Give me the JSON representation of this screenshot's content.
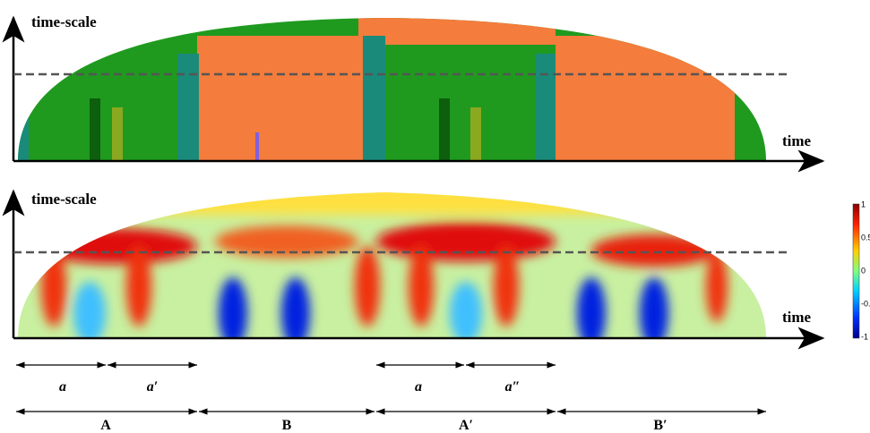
{
  "panels": [
    {
      "y_axis_label": "time-scale",
      "x_axis_label": "time"
    },
    {
      "y_axis_label": "time-scale",
      "x_axis_label": "time"
    }
  ],
  "colorbar": {
    "ticks": [
      1,
      0.5,
      0,
      -0.5,
      -1
    ]
  },
  "segments_small": [
    "a",
    "a′",
    "a",
    "a″"
  ],
  "segments_large": [
    "A",
    "B",
    "A′",
    "B′"
  ]
}
